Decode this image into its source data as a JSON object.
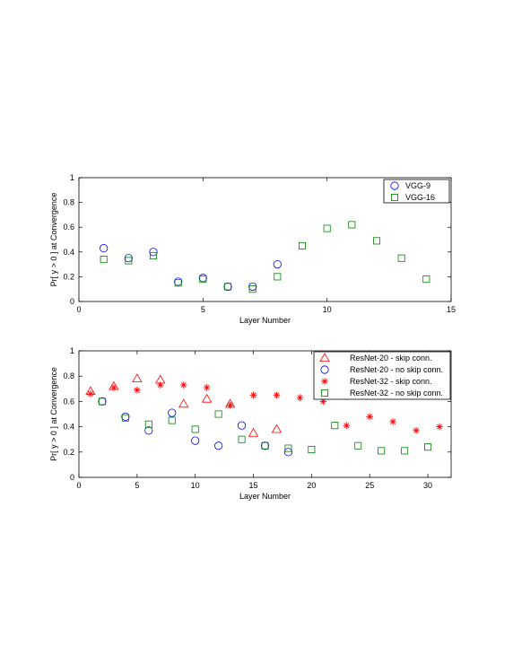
{
  "chart_data": [
    {
      "type": "scatter",
      "xlabel": "Layer Number",
      "ylabel": "Pr[ y > 0 ] at Convergence",
      "xlim": [
        0,
        15
      ],
      "ylim": [
        0,
        1
      ],
      "xticks": [
        "0",
        "5",
        "10",
        "15"
      ],
      "yticks": [
        "0",
        "0.2",
        "0.4",
        "0.6",
        "0.8",
        "1"
      ],
      "legend_position": "top-right",
      "grid": false,
      "series": [
        {
          "name": "VGG-9",
          "marker": "circle",
          "color": "#0000ff",
          "x": [
            1,
            2,
            3,
            4,
            5,
            6,
            7,
            8
          ],
          "y": [
            0.43,
            0.35,
            0.4,
            0.16,
            0.19,
            0.12,
            0.12,
            0.3
          ]
        },
        {
          "name": "VGG-16",
          "marker": "square",
          "color": "#008000",
          "x": [
            1,
            2,
            3,
            4,
            5,
            6,
            7,
            8,
            9,
            10,
            11,
            12,
            13,
            14
          ],
          "y": [
            0.34,
            0.33,
            0.37,
            0.15,
            0.18,
            0.12,
            0.1,
            0.2,
            0.45,
            0.59,
            0.62,
            0.49,
            0.35,
            0.18
          ]
        }
      ]
    },
    {
      "type": "scatter",
      "xlabel": "Layer Number",
      "ylabel": "Pr[ y > 0 ] at Convergence",
      "xlim": [
        0,
        32
      ],
      "ylim": [
        0,
        1
      ],
      "xticks": [
        "0",
        "5",
        "10",
        "15",
        "20",
        "25",
        "30"
      ],
      "yticks": [
        "0",
        "0.2",
        "0.4",
        "0.6",
        "0.8",
        "1"
      ],
      "legend_position": "top-right",
      "grid": false,
      "series": [
        {
          "name": "ResNet-20 - skip conn.",
          "marker": "triangle",
          "color": "#ff0000",
          "x": [
            1,
            3,
            5,
            7,
            9,
            11,
            13,
            15,
            17
          ],
          "y": [
            0.68,
            0.72,
            0.78,
            0.77,
            0.58,
            0.62,
            0.58,
            0.35,
            0.38
          ]
        },
        {
          "name": "ResNet-20 - no skip conn.",
          "marker": "circle",
          "color": "#0000ff",
          "x": [
            2,
            4,
            6,
            8,
            10,
            12,
            14,
            16,
            18
          ],
          "y": [
            0.6,
            0.48,
            0.37,
            0.51,
            0.29,
            0.25,
            0.41,
            0.25,
            0.2
          ]
        },
        {
          "name": "ResNet-32 - skip conn.",
          "marker": "star",
          "color": "#ff0000",
          "x": [
            1,
            3,
            5,
            7,
            9,
            11,
            13,
            15,
            17,
            19,
            21,
            23,
            25,
            27,
            29,
            31
          ],
          "y": [
            0.66,
            0.71,
            0.69,
            0.73,
            0.73,
            0.71,
            0.57,
            0.65,
            0.65,
            0.63,
            0.6,
            0.41,
            0.48,
            0.44,
            0.37,
            0.4
          ]
        },
        {
          "name": "ResNet-32 - no skip conn.",
          "marker": "square",
          "color": "#008000",
          "x": [
            2,
            4,
            6,
            8,
            10,
            12,
            14,
            16,
            18,
            20,
            22,
            24,
            26,
            28,
            30
          ],
          "y": [
            0.6,
            0.47,
            0.42,
            0.45,
            0.38,
            0.5,
            0.3,
            0.25,
            0.23,
            0.22,
            0.41,
            0.25,
            0.21,
            0.21,
            0.24
          ]
        }
      ]
    }
  ]
}
